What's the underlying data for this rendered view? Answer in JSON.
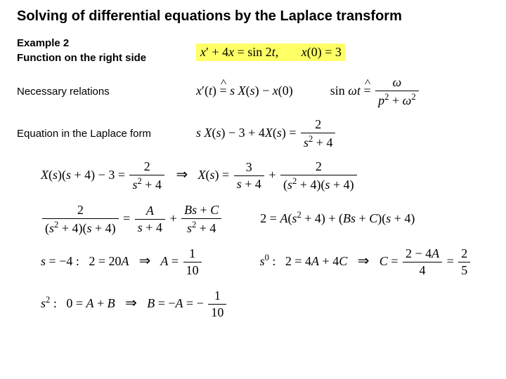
{
  "colors": {
    "background": "#ffffff",
    "text": "#000000",
    "highlight": "#ffff66"
  },
  "title": "Solving of differential equations by the Laplace transform",
  "labels": {
    "example": "Example 2",
    "func_side": "Function on the right side",
    "relations": "Necessary relations",
    "laplace_form": "Equation in the Laplace form"
  },
  "equations": {
    "ode": "x′ + 4x = sin 2t,   x(0) = 3",
    "rel1_lhs": "x′(t)",
    "rel1_rhs": "s X(s) − x(0)",
    "rel2_lhs": "sin ωt",
    "rel2_rhs_num": "ω",
    "rel2_rhs_den": "p² + ω²",
    "laplace_lhs": "s X(s) − 3 + 4X(s) =",
    "laplace_rhs_num": "2",
    "laplace_rhs_den": "s² + 4",
    "step1_lhs": "X(s)(s + 4) − 3 =",
    "step1_rhs_num": "2",
    "step1_rhs_den": "s² + 4",
    "step1b": "X(s) =",
    "step1b_t1_num": "3",
    "step1b_t1_den": "s + 4",
    "step1b_t2_num": "2",
    "step1b_t2_den": "(s² + 4)(s + 4)",
    "pf_lhs_num": "2",
    "pf_lhs_den": "(s² + 4)(s + 4)",
    "pf_t1_num": "A",
    "pf_t1_den": "s + 4",
    "pf_t2_num": "Bs + C",
    "pf_t2_den": "s² + 4",
    "pf_expand": "2 = A(s² + 4) + (Bs + C)(s + 4)",
    "coefA_lhs": "s = −4 :   2 = 20A",
    "coefA_rhs_num": "1",
    "coefA_rhs_den": "10",
    "coefC_lhs": "s⁰ :   2 = 4A + 4C",
    "coefC_rhs_num": "2 − 4A",
    "coefC_rhs_den": "4",
    "coefC_final_num": "2",
    "coefC_final_den": "5",
    "coefB_lhs": "s² :   0 = A + B",
    "coefB_rhs_num": "1",
    "coefB_rhs_den": "10"
  }
}
